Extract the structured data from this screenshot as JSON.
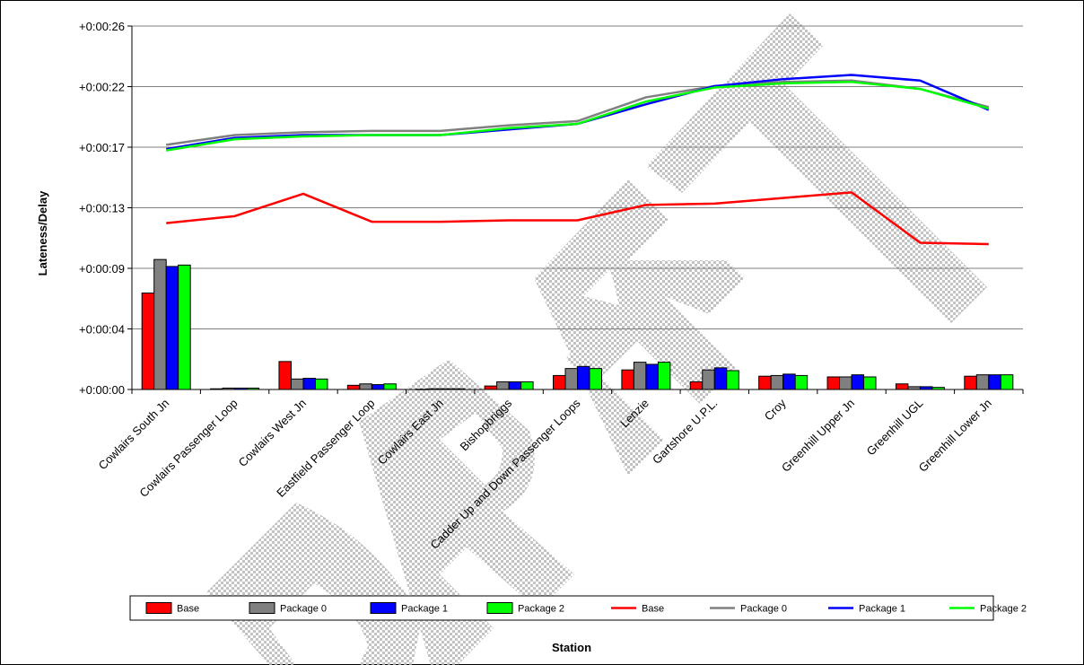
{
  "chart_data": {
    "type": "bar+line",
    "xlabel": "Station",
    "ylabel": "Lateness/Delay",
    "ylim": [
      0,
      26
    ],
    "y_ticks": [
      {
        "value": 0,
        "label": "+0:00:00"
      },
      {
        "value": 4.3333,
        "label": "+0:00:04"
      },
      {
        "value": 8.6667,
        "label": "+0:00:09"
      },
      {
        "value": 13,
        "label": "+0:00:13"
      },
      {
        "value": 17.3333,
        "label": "+0:00:17"
      },
      {
        "value": 21.6667,
        "label": "+0:00:22"
      },
      {
        "value": 26,
        "label": "+0:00:26"
      }
    ],
    "grid": true,
    "legend_position": "bottom",
    "watermark": "DRAFT",
    "categories": [
      "Cowlairs South Jn",
      "Cowlairs Passenger Loop",
      "Cowlairs West Jn",
      "Eastfield Passenger Loop",
      "Cowlairs East Jn",
      "Bishopbriggs",
      "Cadder Up and Down Passenger Loops",
      "Lenzie",
      "Gartshore U.P.L.",
      "Croy",
      "Greenhill Upper Jn",
      "Greenhill UGL",
      "Greenhill Lower Jn"
    ],
    "bar_series": [
      {
        "name": "Base",
        "color": "#ff0000",
        "values": [
          6.9,
          0.05,
          2.0,
          0.3,
          0.02,
          0.25,
          1.0,
          1.4,
          0.55,
          0.95,
          0.9,
          0.4,
          0.95
        ]
      },
      {
        "name": "Package 0",
        "color": "#808080",
        "values": [
          9.3,
          0.1,
          0.75,
          0.4,
          0.05,
          0.55,
          1.5,
          1.95,
          1.4,
          1.0,
          0.9,
          0.2,
          1.05
        ]
      },
      {
        "name": "Package 1",
        "color": "#0000ff",
        "values": [
          8.8,
          0.1,
          0.8,
          0.35,
          0.05,
          0.55,
          1.65,
          1.8,
          1.55,
          1.1,
          1.05,
          0.2,
          1.05
        ]
      },
      {
        "name": "Package 2",
        "color": "#00ff00",
        "values": [
          8.9,
          0.1,
          0.75,
          0.4,
          0.05,
          0.55,
          1.5,
          1.95,
          1.35,
          1.0,
          0.9,
          0.15,
          1.05
        ]
      }
    ],
    "line_series": [
      {
        "name": "Base",
        "color": "#ff0000",
        "values": [
          11.9,
          12.4,
          14.0,
          12.0,
          12.0,
          12.1,
          12.1,
          13.2,
          13.3,
          13.7,
          14.1,
          10.5,
          10.4
        ]
      },
      {
        "name": "Package 0",
        "color": "#808080",
        "values": [
          17.5,
          18.2,
          18.4,
          18.5,
          18.5,
          18.9,
          19.2,
          20.9,
          21.7,
          22.0,
          22.1,
          21.5,
          20.2
        ]
      },
      {
        "name": "Package 1",
        "color": "#0000ff",
        "values": [
          17.2,
          18.0,
          18.2,
          18.2,
          18.2,
          18.6,
          19.0,
          20.4,
          21.7,
          22.2,
          22.5,
          22.1,
          20.0
        ]
      },
      {
        "name": "Package 2",
        "color": "#00ff00",
        "values": [
          17.1,
          17.9,
          18.1,
          18.2,
          18.2,
          18.7,
          19.0,
          20.6,
          21.6,
          21.9,
          22.0,
          21.5,
          20.1
        ]
      }
    ]
  },
  "legend": {
    "items": [
      {
        "kind": "bar",
        "label": "Base",
        "color": "#ff0000"
      },
      {
        "kind": "bar",
        "label": "Package 0",
        "color": "#808080"
      },
      {
        "kind": "bar",
        "label": "Package 1",
        "color": "#0000ff"
      },
      {
        "kind": "bar",
        "label": "Package 2",
        "color": "#00ff00"
      },
      {
        "kind": "line",
        "label": "Base",
        "color": "#ff0000"
      },
      {
        "kind": "line",
        "label": "Package 0",
        "color": "#808080"
      },
      {
        "kind": "line",
        "label": "Package 1",
        "color": "#0000ff"
      },
      {
        "kind": "line",
        "label": "Package 2",
        "color": "#00ff00"
      }
    ]
  }
}
